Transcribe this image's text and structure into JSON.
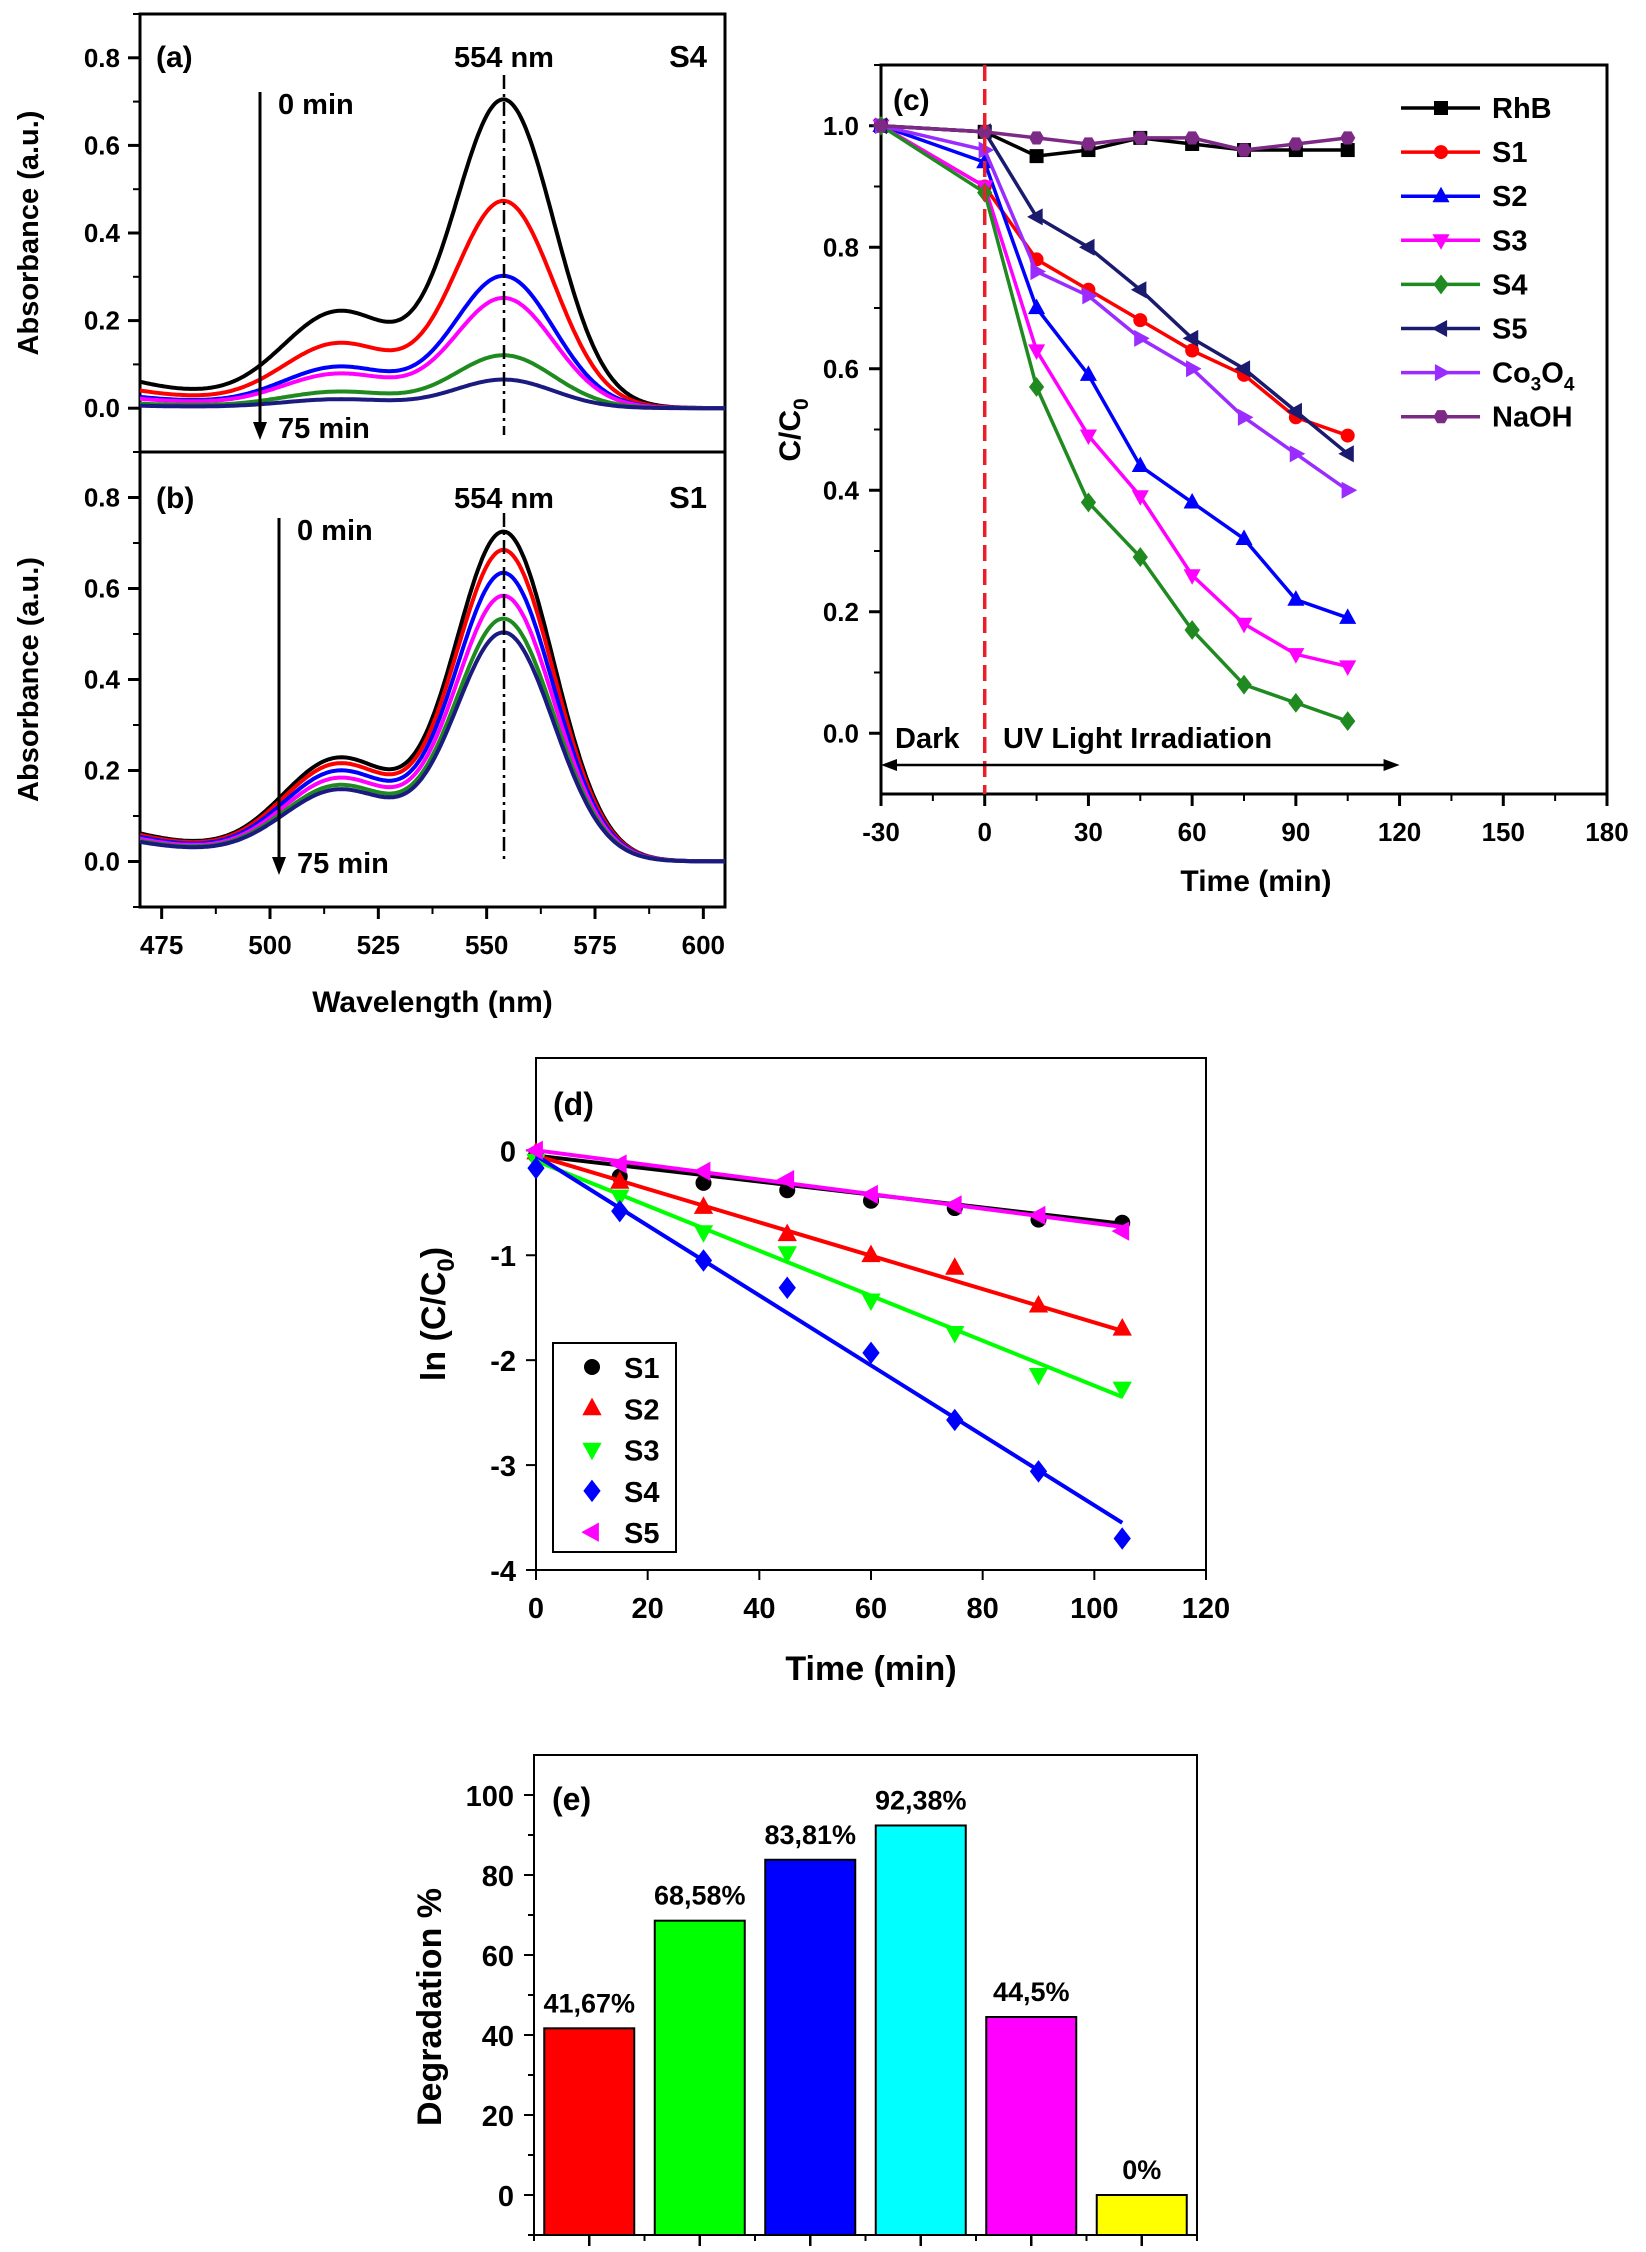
{
  "chart_data": [
    {
      "panel": "(a)",
      "type": "line",
      "sample_label": "S4",
      "peak_label": "554 nm",
      "peak_wavelength": 554,
      "arrow_start_label": "0 min",
      "arrow_end_label": "75 min",
      "xlabel": "",
      "ylabel": "Absorbance (a.u.)",
      "xlim": [
        470,
        605
      ],
      "ylim": [
        -0.1,
        0.9
      ],
      "yticks": [
        "0.0",
        "0.2",
        "0.4",
        "0.6",
        "0.8"
      ],
      "series": [
        {
          "peak": 0.7,
          "color": "#000000"
        },
        {
          "peak": 0.47,
          "color": "#ff0000"
        },
        {
          "peak": 0.3,
          "color": "#0000ff"
        },
        {
          "peak": 0.25,
          "color": "#ff00ff"
        },
        {
          "peak": 0.12,
          "color": "#1f8a1f"
        },
        {
          "peak": 0.065,
          "color": "#1a1a80"
        }
      ]
    },
    {
      "panel": "(b)",
      "type": "line",
      "sample_label": "S1",
      "peak_label": "554 nm",
      "peak_wavelength": 554,
      "arrow_start_label": "0 min",
      "arrow_end_label": "75 min",
      "xlabel": "Wavelength (nm)",
      "ylabel": "Absorbance (a.u.)",
      "xlim": [
        470,
        605
      ],
      "ylim": [
        -0.1,
        0.9
      ],
      "xticks": [
        "475",
        "500",
        "525",
        "550",
        "575",
        "600"
      ],
      "yticks": [
        "0.0",
        "0.2",
        "0.4",
        "0.6",
        "0.8"
      ],
      "series": [
        {
          "peak": 0.72,
          "color": "#000000"
        },
        {
          "peak": 0.68,
          "color": "#ff0000"
        },
        {
          "peak": 0.63,
          "color": "#0000ff"
        },
        {
          "peak": 0.58,
          "color": "#ff00ff"
        },
        {
          "peak": 0.53,
          "color": "#1f8a1f"
        },
        {
          "peak": 0.5,
          "color": "#1a1a80"
        }
      ]
    },
    {
      "panel": "(c)",
      "type": "line",
      "xlabel": "Time (min)",
      "ylabel": {
        "main": "C/C",
        "sub": "0"
      },
      "xlim": [
        -30,
        180
      ],
      "ylim": [
        -0.1,
        1.1
      ],
      "xticks": [
        "-30",
        "0",
        "30",
        "60",
        "90",
        "120",
        "150",
        "180"
      ],
      "yticks": [
        "0.0",
        "0.2",
        "0.4",
        "0.6",
        "0.8",
        "1.0"
      ],
      "dark_label": "Dark",
      "light_label": "UV Light Irradiation",
      "divider_color": "#e8202a",
      "legend_position": "top-right",
      "x": [
        -30,
        0,
        15,
        30,
        45,
        60,
        75,
        90,
        105
      ],
      "series": [
        {
          "name": "RhB",
          "marker": "square",
          "color": "#000000",
          "values": [
            1.0,
            0.99,
            0.95,
            0.96,
            0.98,
            0.97,
            0.96,
            0.96,
            0.96
          ]
        },
        {
          "name": "S1",
          "marker": "circle",
          "color": "#ff0000",
          "values": [
            1.0,
            0.9,
            0.78,
            0.73,
            0.68,
            0.63,
            0.59,
            0.52,
            0.49
          ]
        },
        {
          "name": "S2",
          "marker": "triangle-up",
          "color": "#0000ff",
          "values": [
            1.0,
            0.94,
            0.7,
            0.59,
            0.44,
            0.38,
            0.32,
            0.22,
            0.19
          ]
        },
        {
          "name": "S3",
          "marker": "triangle-down",
          "color": "#ff00ff",
          "values": [
            1.0,
            0.9,
            0.63,
            0.49,
            0.39,
            0.26,
            0.18,
            0.13,
            0.11
          ]
        },
        {
          "name": "S4",
          "marker": "diamond",
          "color": "#1f8a1f",
          "values": [
            1.0,
            0.89,
            0.57,
            0.38,
            0.29,
            0.17,
            0.08,
            0.05,
            0.02
          ]
        },
        {
          "name": "S5",
          "marker": "triangle-left",
          "color": "#1a1a6e",
          "values": [
            1.0,
            0.99,
            0.85,
            0.8,
            0.73,
            0.65,
            0.6,
            0.53,
            0.46
          ]
        },
        {
          "name": "Co3O4",
          "name_parts": [
            "Co",
            "3",
            "O",
            "4"
          ],
          "marker": "triangle-right",
          "color": "#9a2cff",
          "values": [
            1.0,
            0.96,
            0.76,
            0.72,
            0.65,
            0.6,
            0.52,
            0.46,
            0.4
          ]
        },
        {
          "name": "NaOH",
          "marker": "hexagon",
          "color": "#7d2a86",
          "values": [
            1.0,
            0.99,
            0.98,
            0.97,
            0.98,
            0.98,
            0.96,
            0.97,
            0.98
          ]
        }
      ]
    },
    {
      "panel": "(d)",
      "type": "scatter",
      "xlabel": "Time (min)",
      "ylabel": {
        "main": "ln (C/C",
        "sub": "0",
        "end": ")"
      },
      "xlim": [
        0,
        120
      ],
      "ylim": [
        -4,
        0.88
      ],
      "xticks": [
        "0",
        "20",
        "40",
        "60",
        "80",
        "100",
        "120"
      ],
      "yticks": [
        "0",
        "-1",
        "-2",
        "-3",
        "-4"
      ],
      "legend_position": "bottom-left",
      "x": [
        0,
        15,
        30,
        45,
        60,
        75,
        90,
        105
      ],
      "series": [
        {
          "name": "S1",
          "marker": "circle",
          "color": "#000000",
          "values": [
            -0.05,
            -0.25,
            -0.31,
            -0.38,
            -0.48,
            -0.55,
            -0.66,
            -0.69
          ],
          "fit": [
            -0.05,
            -0.7
          ]
        },
        {
          "name": "S2",
          "marker": "triangle-up",
          "color": "#ff0000",
          "values": [
            -0.02,
            -0.3,
            -0.54,
            -0.8,
            -1.0,
            -1.12,
            -1.48,
            -1.7
          ],
          "fit": [
            -0.05,
            -1.72
          ]
        },
        {
          "name": "S3",
          "marker": "triangle-down",
          "color": "#00ff00",
          "values": [
            -0.1,
            -0.44,
            -0.78,
            -0.98,
            -1.43,
            -1.74,
            -2.14,
            -2.27
          ],
          "fit": [
            -0.1,
            -2.35
          ]
        },
        {
          "name": "S4",
          "marker": "diamond",
          "color": "#0000ff",
          "values": [
            -0.17,
            -0.58,
            -1.05,
            -1.31,
            -1.93,
            -2.57,
            -3.06,
            -3.7
          ],
          "fit": [
            -0.05,
            -3.55
          ]
        },
        {
          "name": "S5",
          "marker": "triangle-left",
          "color": "#ff00ff",
          "values": [
            0.0,
            -0.13,
            -0.2,
            -0.28,
            -0.42,
            -0.52,
            -0.62,
            -0.77
          ],
          "fit": [
            0.0,
            -0.73
          ]
        }
      ]
    },
    {
      "panel": "(e)",
      "type": "bar",
      "xlabel": "",
      "ylabel": "Degradation %",
      "ylim": [
        -10,
        110
      ],
      "yticks": [
        "0",
        "20",
        "40",
        "60",
        "80",
        "100"
      ],
      "values": [
        41.67,
        68.58,
        83.81,
        92.38,
        44.5,
        0
      ],
      "data_labels": [
        "41,67%",
        "68,58%",
        "83,81%",
        "92,38%",
        "44,5%",
        "0%"
      ],
      "colors": [
        "#ff0000",
        "#00ff00",
        "#0000ff",
        "#00ffff",
        "#ff00ff",
        "#ffff00"
      ]
    }
  ]
}
